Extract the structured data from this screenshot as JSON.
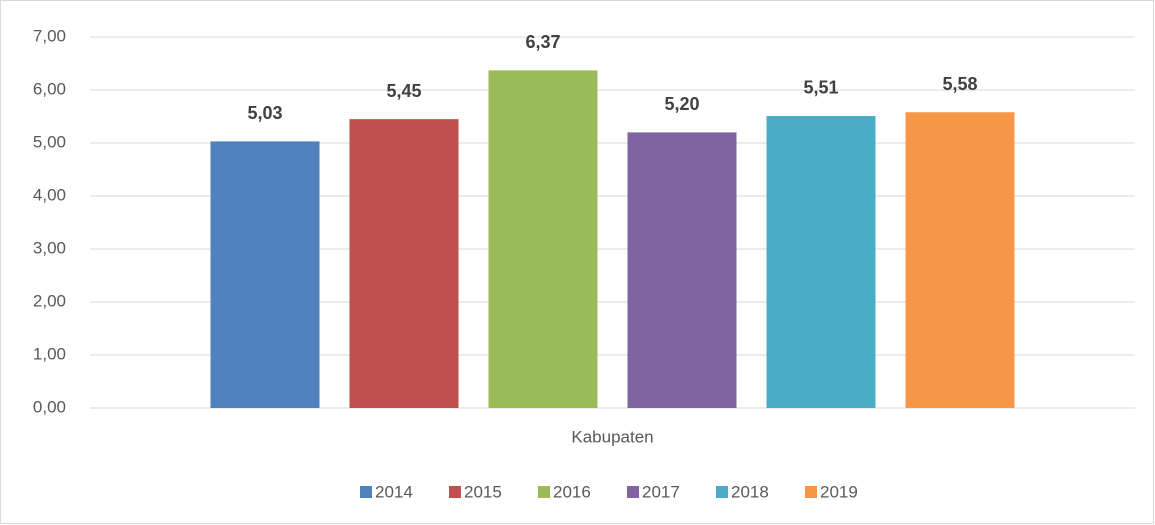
{
  "chart_data": {
    "type": "bar",
    "categories": [
      "Kabupaten"
    ],
    "series": [
      {
        "name": "2014",
        "color": "#4f81bd",
        "values": [
          5.03
        ],
        "value_labels": [
          "5,03"
        ]
      },
      {
        "name": "2015",
        "color": "#c0504d",
        "values": [
          5.45
        ],
        "value_labels": [
          "5,45"
        ]
      },
      {
        "name": "2016",
        "color": "#9bbb59",
        "values": [
          6.37
        ],
        "value_labels": [
          "6,37"
        ]
      },
      {
        "name": "2017",
        "color": "#8064a2",
        "values": [
          5.2
        ],
        "value_labels": [
          "5,20"
        ]
      },
      {
        "name": "2018",
        "color": "#4bacc6",
        "values": [
          5.51
        ],
        "value_labels": [
          "5,51"
        ]
      },
      {
        "name": "2019",
        "color": "#f79646",
        "values": [
          5.58
        ],
        "value_labels": [
          "5,58"
        ]
      }
    ],
    "ylim": [
      0,
      7
    ],
    "yticks": [
      {
        "value": 0,
        "label": "0,00"
      },
      {
        "value": 1,
        "label": "1,00"
      },
      {
        "value": 2,
        "label": "2,00"
      },
      {
        "value": 3,
        "label": "3,00"
      },
      {
        "value": 4,
        "label": "4,00"
      },
      {
        "value": 5,
        "label": "5,00"
      },
      {
        "value": 6,
        "label": "6,00"
      },
      {
        "value": 7,
        "label": "7,00"
      }
    ],
    "grid": true,
    "legend": "bottom"
  }
}
